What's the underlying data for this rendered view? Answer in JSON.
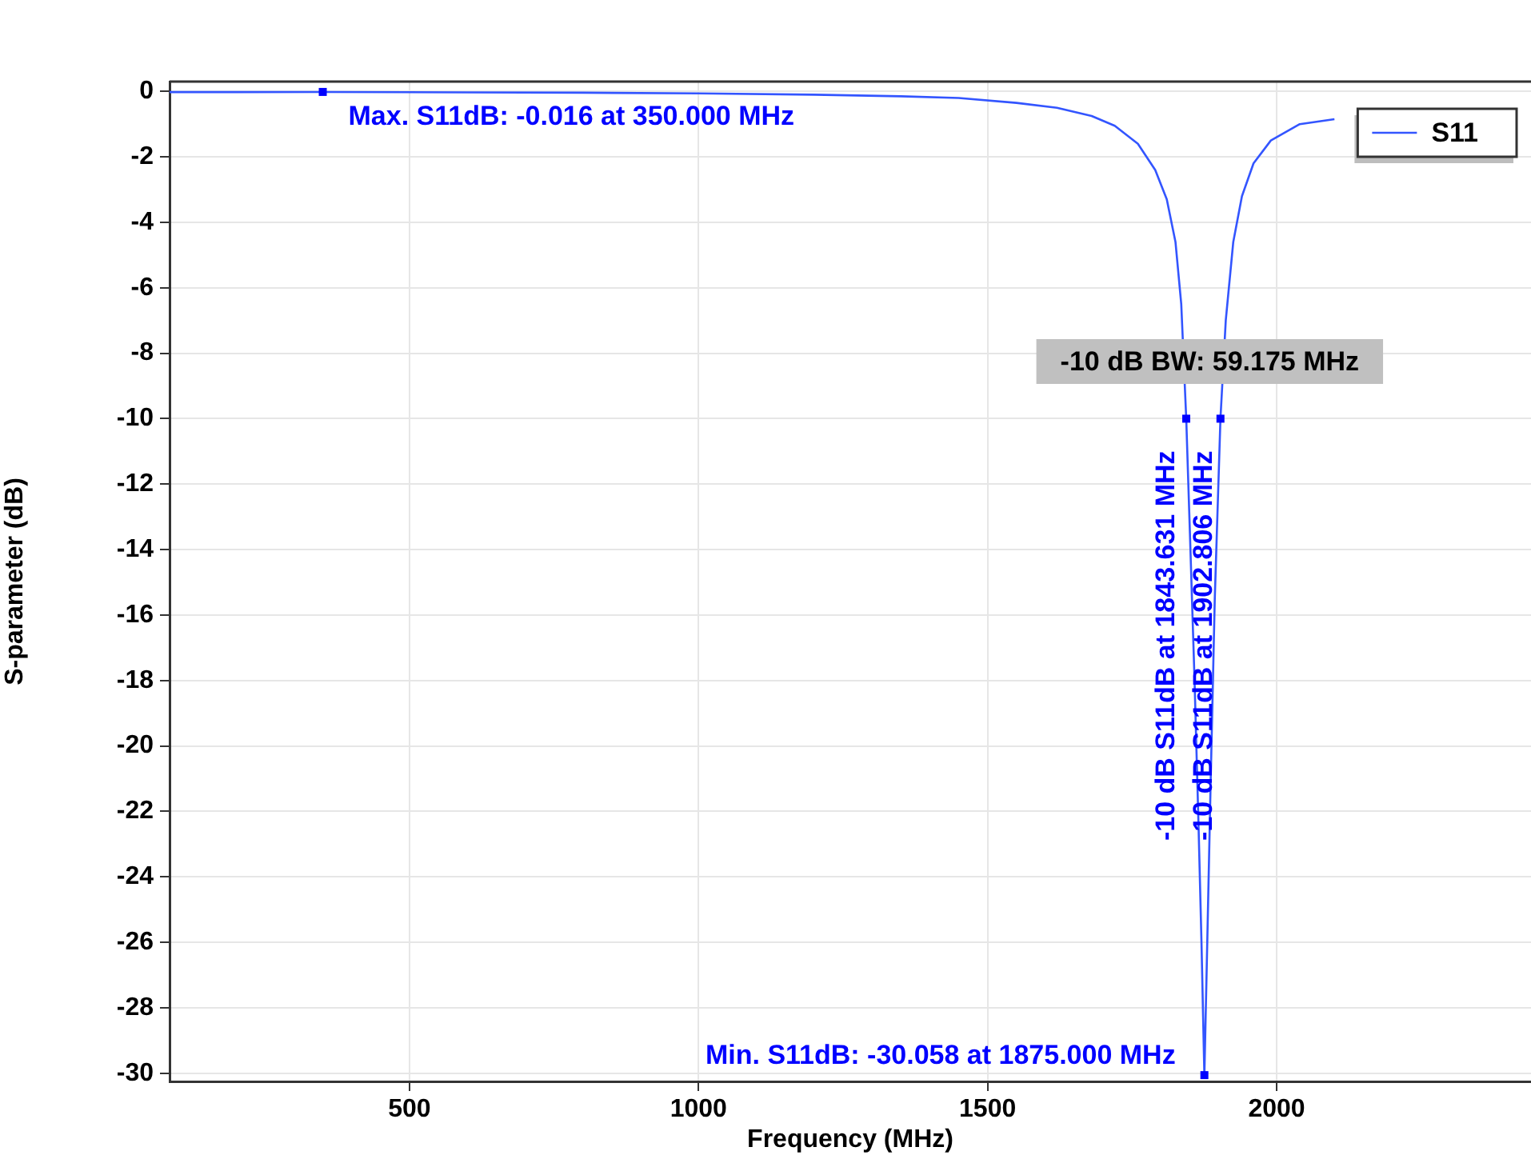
{
  "chart_data": {
    "type": "line",
    "xlabel": "Frequency (MHz)",
    "ylabel": "S-parameter (dB)",
    "xlim": [
      85,
      2440
    ],
    "ylim": [
      -30.25,
      0.3
    ],
    "xticks": [
      500,
      1000,
      1500,
      2000
    ],
    "yticks": [
      0,
      -2,
      -4,
      -6,
      -8,
      -10,
      -12,
      -14,
      -16,
      -18,
      -20,
      -22,
      -24,
      -26,
      -28,
      -30
    ],
    "grid": true,
    "legend": "top right",
    "marker": "none",
    "line_style": "solid",
    "series": [
      {
        "name": "S11",
        "color": "#3355ff",
        "x": [
          85,
          200,
          350,
          600,
          800,
          1000,
          1200,
          1350,
          1450,
          1550,
          1620,
          1680,
          1720,
          1760,
          1790,
          1810,
          1825,
          1835,
          1843.631,
          1850,
          1858,
          1865,
          1870,
          1875,
          1880,
          1886,
          1893,
          1902.806,
          1912,
          1925,
          1940,
          1960,
          1990,
          2040,
          2100
        ],
        "values": [
          -0.02,
          -0.02,
          -0.016,
          -0.03,
          -0.04,
          -0.06,
          -0.1,
          -0.15,
          -0.2,
          -0.35,
          -0.5,
          -0.75,
          -1.05,
          -1.6,
          -2.4,
          -3.3,
          -4.6,
          -6.5,
          -10,
          -13.5,
          -18,
          -22.5,
          -26,
          -30.058,
          -26,
          -21,
          -15.5,
          -10,
          -7,
          -4.6,
          -3.2,
          -2.2,
          -1.5,
          -1.0,
          -0.85
        ]
      }
    ],
    "annotations": [
      {
        "text": "Max. S11dB: -0.016 at 350.000 MHz",
        "x": 350,
        "y": -0.016
      },
      {
        "text": "Min. S11dB: -30.058 at 1875.000 MHz",
        "x": 1875,
        "y": -30.058
      },
      {
        "text": "-10 dB S11dB at 1843.631 MHz",
        "x": 1843.631,
        "y": -10
      },
      {
        "text": "-10 dB S11dB at 1902.806 MHz",
        "x": 1902.806,
        "y": -10
      },
      "-10 dB BW: 59.175 MHz"
    ]
  }
}
